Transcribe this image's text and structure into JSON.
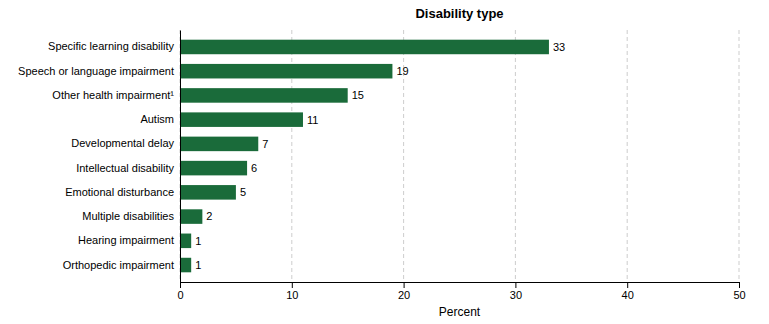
{
  "chart_data": {
    "type": "bar",
    "orientation": "horizontal",
    "title": "Disability type",
    "xlabel": "Percent",
    "categories": [
      "Orthopedic impairment",
      "Hearing impairment",
      "Multiple disabilities",
      "Emotional disturbance",
      "Intellectual disability",
      "Developmental delay",
      "Autism",
      "Other health impairment¹",
      "Speech or language impairment",
      "Specific learning disability"
    ],
    "values": [
      1,
      1,
      2,
      5,
      6,
      7,
      11,
      15,
      19,
      33
    ],
    "color": "#1a6b3a",
    "xlim": [
      0,
      50
    ],
    "xticks": [
      0,
      10,
      20,
      30,
      40,
      50
    ],
    "grid": true,
    "data_labels": true
  }
}
